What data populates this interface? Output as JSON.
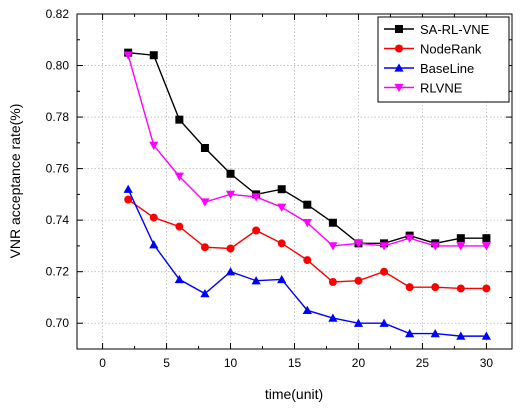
{
  "chart_data": {
    "type": "line",
    "title": "",
    "xlabel": "time(unit)",
    "ylabel": "VNR acceptance rate(%)",
    "xlim": [
      -2,
      32
    ],
    "ylim": [
      0.69,
      0.82
    ],
    "xticks": [
      0,
      5,
      10,
      15,
      20,
      25,
      30
    ],
    "yticks": [
      0.7,
      0.72,
      0.74,
      0.76,
      0.78,
      0.8,
      0.82
    ],
    "xtick_labels": [
      "0",
      "5",
      "10",
      "15",
      "20",
      "25",
      "30"
    ],
    "ytick_labels": [
      "0.70",
      "0.72",
      "0.74",
      "0.76",
      "0.78",
      "0.80",
      "0.82"
    ],
    "grid": true,
    "legend_position": "top-right",
    "x": [
      2,
      4,
      6,
      8,
      10,
      12,
      14,
      16,
      18,
      20,
      22,
      24,
      26,
      28,
      30
    ],
    "series": [
      {
        "name": "SA-RL-VNE",
        "color": "#000000",
        "marker": "square",
        "values": [
          0.805,
          0.804,
          0.779,
          0.768,
          0.758,
          0.75,
          0.752,
          0.746,
          0.739,
          0.731,
          0.731,
          0.734,
          0.731,
          0.733,
          0.733
        ]
      },
      {
        "name": "NodeRank",
        "color": "#ff0000",
        "marker": "circle",
        "values": [
          0.748,
          0.741,
          0.7375,
          0.7295,
          0.729,
          0.736,
          0.731,
          0.7245,
          0.716,
          0.7165,
          0.72,
          0.714,
          0.714,
          0.7135,
          0.7135
        ]
      },
      {
        "name": "BaseLine",
        "color": "#0000ff",
        "marker": "triangle-up",
        "values": [
          0.752,
          0.7305,
          0.717,
          0.7115,
          0.72,
          0.7165,
          0.717,
          0.705,
          0.702,
          0.7,
          0.7,
          0.696,
          0.696,
          0.695,
          0.695
        ]
      },
      {
        "name": "RLVNE",
        "color": "#ff00ff",
        "marker": "triangle-down",
        "values": [
          0.804,
          0.769,
          0.757,
          0.747,
          0.75,
          0.749,
          0.745,
          0.739,
          0.73,
          0.731,
          0.73,
          0.733,
          0.73,
          0.73,
          0.73
        ]
      }
    ]
  }
}
